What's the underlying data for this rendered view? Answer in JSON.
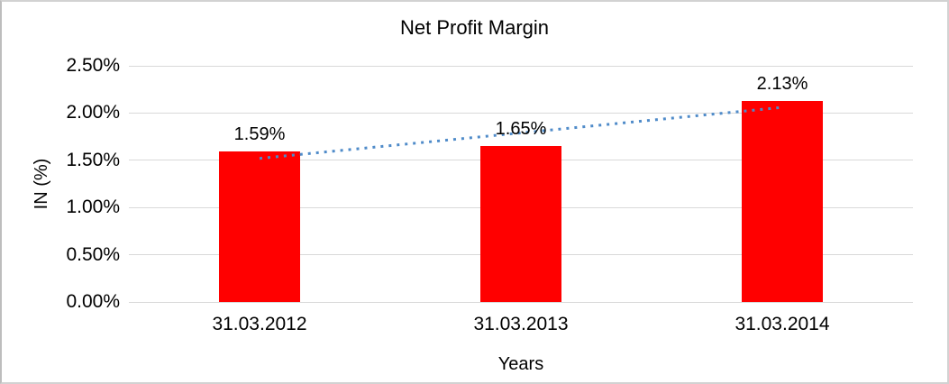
{
  "chart_data": {
    "type": "bar",
    "title": "Net Profit Margin",
    "categories": [
      "31.03.2012",
      "31.03.2013",
      "31.03.2014"
    ],
    "values": [
      1.59,
      1.65,
      2.13
    ],
    "value_labels": [
      "1.59%",
      "1.65%",
      "2.13%"
    ],
    "xlabel": "Years",
    "ylabel": "IN (%)",
    "ylim": [
      0,
      2.5
    ],
    "ytick_step": 0.5,
    "ytick_labels": [
      "0.00%",
      "0.50%",
      "1.00%",
      "1.50%",
      "2.00%",
      "2.50%"
    ],
    "grid": true,
    "legend": "none",
    "bar_color": "#FF0000",
    "gridline_color": "#D9D9D9",
    "text_color": "#000000",
    "frame_color": "#D2D2D2",
    "trendline": {
      "type": "linear",
      "style": "dotted",
      "color": "#4F8BC9",
      "start_value": 1.52,
      "end_value": 2.06
    }
  }
}
